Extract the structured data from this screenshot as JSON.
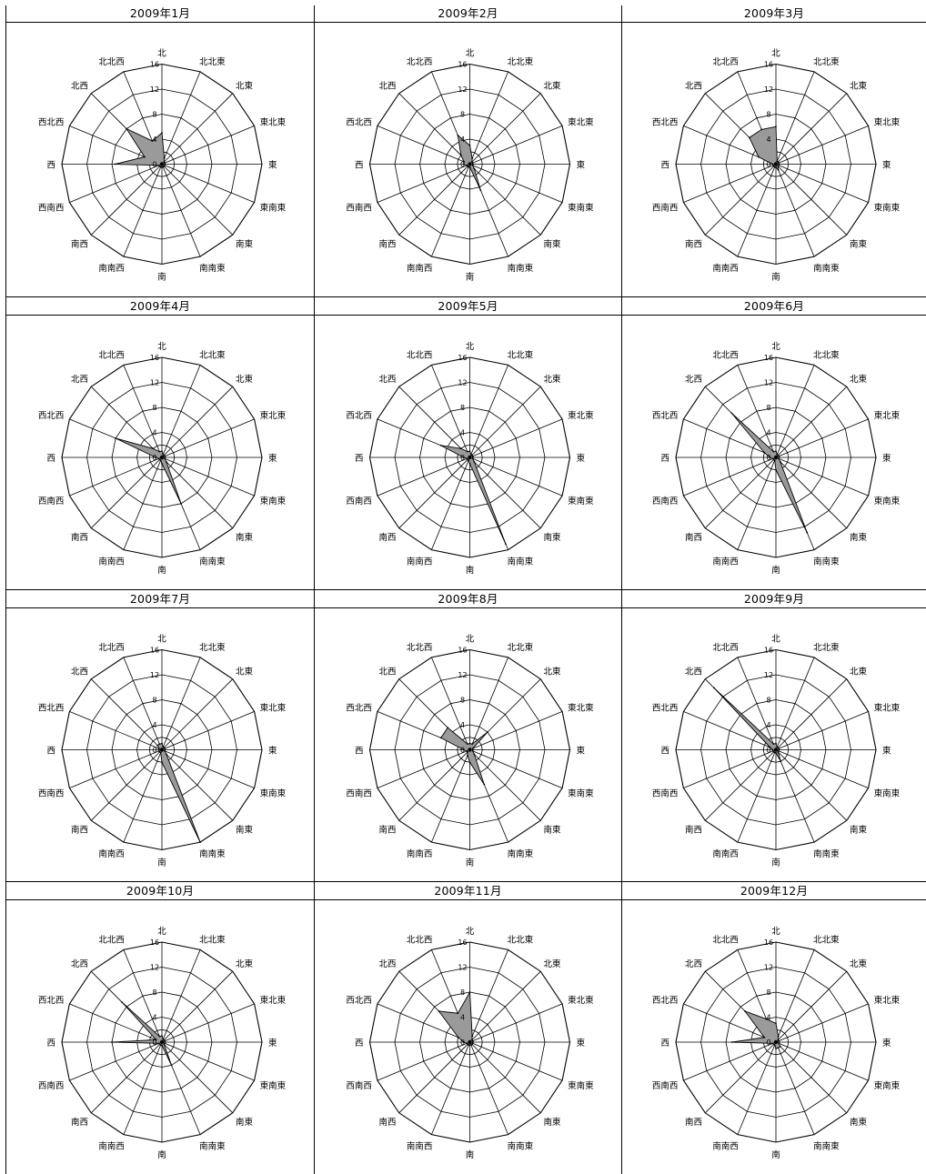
{
  "directions": [
    "北",
    "北北東",
    "北東",
    "東北東",
    "東",
    "東南東",
    "南東",
    "南南東",
    "南",
    "南南西",
    "南西",
    "西南西",
    "西",
    "西北西",
    "北西",
    "北北西"
  ],
  "r_ticks": [
    "0",
    "4",
    "8",
    "12",
    "16"
  ],
  "colors": {
    "fill": "#9a9a9a",
    "grid": "#000000",
    "line": "#000000"
  },
  "chart_data": [
    {
      "type": "radar",
      "title": "2009年1月",
      "rmax": 16,
      "categories": [
        "北",
        "北北東",
        "北東",
        "東北東",
        "東",
        "東南東",
        "南東",
        "南南東",
        "南",
        "南南西",
        "南西",
        "西南西",
        "西",
        "西北西",
        "北西",
        "北北西"
      ],
      "values": [
        5,
        1,
        0.5,
        0.5,
        0.5,
        0.5,
        0.5,
        0.5,
        0.5,
        0.5,
        0.5,
        0.5,
        7.5,
        3,
        8,
        4
      ]
    },
    {
      "type": "radar",
      "title": "2009年2月",
      "rmax": 16,
      "categories": [
        "北",
        "北北東",
        "北東",
        "東北東",
        "東",
        "東南東",
        "南東",
        "南南東",
        "南",
        "南南西",
        "南西",
        "西南西",
        "西",
        "西北西",
        "北西",
        "北北西"
      ],
      "values": [
        3,
        1,
        0.5,
        0.5,
        0.5,
        0.5,
        1,
        4.5,
        0.5,
        0.5,
        0.5,
        0.5,
        1,
        1,
        2,
        5
      ]
    },
    {
      "type": "radar",
      "title": "2009年3月",
      "rmax": 16,
      "categories": [
        "北",
        "北北東",
        "北東",
        "東北東",
        "東",
        "東南東",
        "南東",
        "南南東",
        "南",
        "南南西",
        "南西",
        "西南西",
        "西",
        "西北西",
        "北西",
        "北北西"
      ],
      "values": [
        6,
        0.5,
        0.5,
        0.5,
        0.5,
        0.5,
        0.5,
        1,
        0.5,
        0.5,
        0.5,
        0.5,
        0.5,
        3,
        6,
        6
      ]
    },
    {
      "type": "radar",
      "title": "2009年4月",
      "rmax": 16,
      "categories": [
        "北",
        "北北東",
        "北東",
        "東北東",
        "東",
        "東南東",
        "南東",
        "南南東",
        "南",
        "南南西",
        "南西",
        "西南西",
        "西",
        "西北西",
        "北西",
        "北北西"
      ],
      "values": [
        1,
        0.5,
        0.5,
        0.5,
        0.5,
        0.5,
        1,
        8,
        1,
        0.5,
        0.5,
        0.5,
        1,
        8,
        2,
        1
      ]
    },
    {
      "type": "radar",
      "title": "2009年5月",
      "rmax": 16,
      "categories": [
        "北",
        "北北東",
        "北東",
        "東北東",
        "東",
        "東南東",
        "南東",
        "南南東",
        "南",
        "南南西",
        "南西",
        "西南西",
        "西",
        "西北西",
        "北西",
        "北北西"
      ],
      "values": [
        1,
        0.5,
        0.5,
        0.5,
        0.5,
        0.5,
        1,
        15,
        1,
        0.5,
        0.5,
        0.5,
        1,
        5,
        2,
        1
      ]
    },
    {
      "type": "radar",
      "title": "2009年6月",
      "rmax": 16,
      "categories": [
        "北",
        "北北東",
        "北東",
        "東北東",
        "東",
        "東南東",
        "南東",
        "南南東",
        "南",
        "南南西",
        "南西",
        "西南西",
        "西",
        "西北西",
        "北西",
        "北北西"
      ],
      "values": [
        1,
        0.5,
        0.5,
        0.5,
        0.5,
        0.5,
        1,
        13,
        2,
        0.5,
        0.5,
        0.5,
        1,
        2,
        10,
        1
      ]
    },
    {
      "type": "radar",
      "title": "2009年7月",
      "rmax": 16,
      "categories": [
        "北",
        "北北東",
        "北東",
        "東北東",
        "東",
        "東南東",
        "南東",
        "南南東",
        "南",
        "南南西",
        "南西",
        "西南西",
        "西",
        "西北西",
        "北西",
        "北北西"
      ],
      "values": [
        1,
        0.5,
        0.5,
        0.5,
        0.5,
        0.5,
        1,
        16,
        2,
        0.5,
        0.5,
        0.5,
        0.5,
        0.5,
        1,
        1
      ]
    },
    {
      "type": "radar",
      "title": "2009年8月",
      "rmax": 16,
      "categories": [
        "北",
        "北北東",
        "北東",
        "東北東",
        "東",
        "東南東",
        "南東",
        "南南東",
        "南",
        "南南西",
        "南西",
        "西南西",
        "西",
        "西北西",
        "北西",
        "北北西"
      ],
      "values": [
        1,
        1,
        4,
        0.5,
        0.5,
        0.5,
        1,
        6,
        2,
        1,
        0.5,
        0.5,
        1,
        5,
        5,
        1
      ]
    },
    {
      "type": "radar",
      "title": "2009年9月",
      "rmax": 16,
      "categories": [
        "北",
        "北北東",
        "北東",
        "東北東",
        "東",
        "東南東",
        "南東",
        "南南東",
        "南",
        "南南西",
        "南西",
        "西南西",
        "西",
        "西北西",
        "北西",
        "北北西"
      ],
      "values": [
        1,
        0.5,
        0.5,
        0.5,
        0.5,
        0.5,
        0.5,
        2,
        0.5,
        0.5,
        0.5,
        0.5,
        0.5,
        1,
        14,
        1
      ]
    },
    {
      "type": "radar",
      "title": "2009年10月",
      "rmax": 16,
      "categories": [
        "北",
        "北北東",
        "北東",
        "東北東",
        "東",
        "東南東",
        "南東",
        "南南東",
        "南",
        "南南西",
        "南西",
        "西南西",
        "西",
        "西北西",
        "北西",
        "北北西"
      ],
      "values": [
        1,
        0.5,
        0.5,
        0.5,
        0.5,
        0.5,
        0.5,
        4,
        0.5,
        0.5,
        0.5,
        0.5,
        8,
        1,
        9,
        1
      ]
    },
    {
      "type": "radar",
      "title": "2009年11月",
      "rmax": 16,
      "categories": [
        "北",
        "北北東",
        "北東",
        "東北東",
        "東",
        "東南東",
        "南東",
        "南南東",
        "南",
        "南南西",
        "南西",
        "西南西",
        "西",
        "西北西",
        "北西",
        "北北西"
      ],
      "values": [
        8,
        1,
        0.5,
        0.5,
        0.5,
        0.5,
        0.5,
        0.5,
        0.5,
        0.5,
        0.5,
        0.5,
        1,
        2,
        7,
        5
      ]
    },
    {
      "type": "radar",
      "title": "2009年12月",
      "rmax": 16,
      "categories": [
        "北",
        "北北東",
        "北東",
        "東北東",
        "東",
        "東南東",
        "南東",
        "南南東",
        "南",
        "南南西",
        "南西",
        "西南西",
        "西",
        "西北西",
        "北西",
        "北北西"
      ],
      "values": [
        3,
        1,
        0.5,
        0.5,
        0.5,
        0.5,
        1,
        1,
        1,
        0.5,
        0.5,
        0.5,
        7,
        2,
        7,
        4
      ]
    }
  ]
}
